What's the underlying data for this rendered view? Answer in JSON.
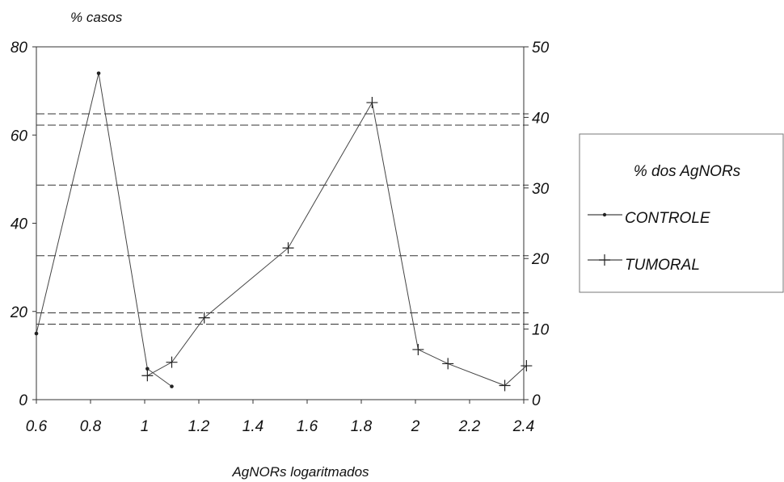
{
  "chart_data": {
    "type": "line",
    "ylabel": "% casos",
    "xlabel": "AgNORs logaritmados",
    "x_ticks": [
      "0.6",
      "0.8",
      "1",
      "1.2",
      "1.4",
      "1.6",
      "1.8",
      "2",
      "2.2",
      "2.4"
    ],
    "ylim": [
      0,
      80
    ],
    "y_ticks": [
      "0",
      "20",
      "40",
      "60",
      "80"
    ],
    "y2lim": [
      0,
      50
    ],
    "y2_ticks": [
      "0",
      "10",
      "20",
      "30",
      "40",
      "50"
    ],
    "grid_values_right_axis": [
      10.7,
      12.3,
      20.4,
      30.4,
      38.9,
      40.5
    ],
    "series": [
      {
        "name": "CONTROLE",
        "marker": "dot",
        "axis": "left",
        "x": [
          0.6,
          0.83,
          1.01,
          1.1
        ],
        "values": [
          15,
          74,
          7,
          3
        ]
      },
      {
        "name": "TUMORAL",
        "marker": "plus",
        "axis": "right",
        "x": [
          1.01,
          1.1,
          1.22,
          1.53,
          1.84,
          2.01,
          2.12,
          2.33,
          2.41
        ],
        "values": [
          3.4,
          5.3,
          11.6,
          21.5,
          42.1,
          7.1,
          5.1,
          2.0,
          4.8
        ]
      }
    ],
    "legend": {
      "title": "% dos AgNORs",
      "position": "right",
      "entries": [
        "CONTROLE",
        "TUMORAL"
      ]
    },
    "grid": true,
    "colors": {
      "lines": "#444444",
      "grid": "#333333"
    }
  }
}
